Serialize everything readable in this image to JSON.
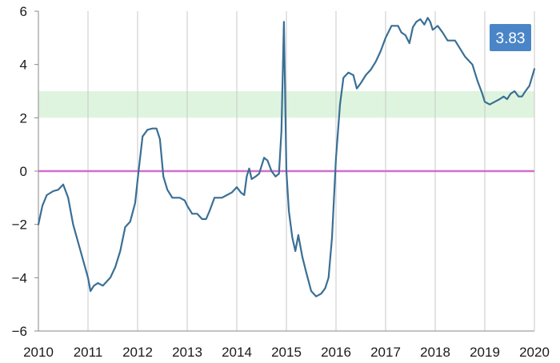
{
  "chart_data": {
    "type": "line",
    "title": "",
    "xlabel": "",
    "ylabel": "",
    "xlim": [
      2010,
      2020
    ],
    "ylim": [
      -6,
      6
    ],
    "x_ticks": [
      "2010",
      "2011",
      "2012",
      "2013",
      "2014",
      "2015",
      "2016",
      "2017",
      "2018",
      "2019",
      "2020"
    ],
    "y_ticks": [
      "6",
      "4",
      "2",
      "0",
      "−2",
      "−4",
      "−6"
    ],
    "grid": "vertical",
    "reference_band": {
      "from": 2,
      "to": 3,
      "color": "#d9f2d9"
    },
    "zero_line": {
      "y": 0,
      "color": "#d070c8"
    },
    "series": [
      {
        "color": "#3a6f95",
        "points": [
          [
            2010.0,
            -2.0
          ],
          [
            2010.08,
            -1.3
          ],
          [
            2010.17,
            -0.9
          ],
          [
            2010.3,
            -0.75
          ],
          [
            2010.4,
            -0.7
          ],
          [
            2010.5,
            -0.5
          ],
          [
            2010.6,
            -1.0
          ],
          [
            2010.7,
            -2.0
          ],
          [
            2010.85,
            -3.0
          ],
          [
            2011.0,
            -4.0
          ],
          [
            2011.05,
            -4.5
          ],
          [
            2011.12,
            -4.3
          ],
          [
            2011.2,
            -4.2
          ],
          [
            2011.3,
            -4.3
          ],
          [
            2011.45,
            -4.0
          ],
          [
            2011.55,
            -3.6
          ],
          [
            2011.65,
            -3.0
          ],
          [
            2011.75,
            -2.1
          ],
          [
            2011.85,
            -1.9
          ],
          [
            2011.95,
            -1.2
          ],
          [
            2012.02,
            0.0
          ],
          [
            2012.1,
            1.3
          ],
          [
            2012.2,
            1.55
          ],
          [
            2012.3,
            1.6
          ],
          [
            2012.38,
            1.6
          ],
          [
            2012.45,
            1.2
          ],
          [
            2012.52,
            -0.2
          ],
          [
            2012.6,
            -0.7
          ],
          [
            2012.7,
            -1.0
          ],
          [
            2012.85,
            -1.0
          ],
          [
            2012.95,
            -1.1
          ],
          [
            2013.0,
            -1.3
          ],
          [
            2013.1,
            -1.6
          ],
          [
            2013.2,
            -1.6
          ],
          [
            2013.3,
            -1.8
          ],
          [
            2013.38,
            -1.8
          ],
          [
            2013.45,
            -1.5
          ],
          [
            2013.55,
            -1.0
          ],
          [
            2013.7,
            -1.0
          ],
          [
            2013.8,
            -0.9
          ],
          [
            2013.9,
            -0.8
          ],
          [
            2014.0,
            -0.6
          ],
          [
            2014.08,
            -0.8
          ],
          [
            2014.15,
            -0.9
          ],
          [
            2014.2,
            -0.2
          ],
          [
            2014.25,
            0.1
          ],
          [
            2014.3,
            -0.3
          ],
          [
            2014.38,
            -0.2
          ],
          [
            2014.45,
            -0.1
          ],
          [
            2014.55,
            0.5
          ],
          [
            2014.62,
            0.4
          ],
          [
            2014.7,
            0.0
          ],
          [
            2014.78,
            -0.2
          ],
          [
            2014.85,
            -0.1
          ],
          [
            2014.9,
            1.5
          ],
          [
            2014.95,
            5.6
          ],
          [
            2015.0,
            0.0
          ],
          [
            2015.05,
            -1.5
          ],
          [
            2015.12,
            -2.5
          ],
          [
            2015.18,
            -3.0
          ],
          [
            2015.24,
            -2.4
          ],
          [
            2015.32,
            -3.2
          ],
          [
            2015.4,
            -3.8
          ],
          [
            2015.5,
            -4.5
          ],
          [
            2015.6,
            -4.7
          ],
          [
            2015.7,
            -4.6
          ],
          [
            2015.78,
            -4.4
          ],
          [
            2015.85,
            -4.0
          ],
          [
            2015.92,
            -2.5
          ],
          [
            2016.0,
            0.5
          ],
          [
            2016.08,
            2.5
          ],
          [
            2016.15,
            3.5
          ],
          [
            2016.25,
            3.7
          ],
          [
            2016.35,
            3.6
          ],
          [
            2016.42,
            3.1
          ],
          [
            2016.5,
            3.3
          ],
          [
            2016.6,
            3.6
          ],
          [
            2016.7,
            3.8
          ],
          [
            2016.8,
            4.1
          ],
          [
            2016.9,
            4.5
          ],
          [
            2017.0,
            5.0
          ],
          [
            2017.12,
            5.45
          ],
          [
            2017.25,
            5.45
          ],
          [
            2017.32,
            5.2
          ],
          [
            2017.4,
            5.1
          ],
          [
            2017.48,
            4.8
          ],
          [
            2017.55,
            5.4
          ],
          [
            2017.62,
            5.6
          ],
          [
            2017.7,
            5.7
          ],
          [
            2017.78,
            5.5
          ],
          [
            2017.85,
            5.75
          ],
          [
            2017.9,
            5.6
          ],
          [
            2017.95,
            5.3
          ],
          [
            2018.05,
            5.45
          ],
          [
            2018.15,
            5.2
          ],
          [
            2018.25,
            4.9
          ],
          [
            2018.4,
            4.9
          ],
          [
            2018.5,
            4.6
          ],
          [
            2018.6,
            4.3
          ],
          [
            2018.75,
            4.0
          ],
          [
            2018.85,
            3.4
          ],
          [
            2018.95,
            2.9
          ],
          [
            2019.0,
            2.6
          ],
          [
            2019.1,
            2.5
          ],
          [
            2019.2,
            2.6
          ],
          [
            2019.3,
            2.7
          ],
          [
            2019.38,
            2.8
          ],
          [
            2019.45,
            2.7
          ],
          [
            2019.52,
            2.9
          ],
          [
            2019.6,
            3.0
          ],
          [
            2019.68,
            2.8
          ],
          [
            2019.75,
            2.8
          ],
          [
            2019.82,
            3.0
          ],
          [
            2019.9,
            3.2
          ],
          [
            2020.0,
            3.83
          ]
        ]
      }
    ],
    "annotations": [
      {
        "text": "3.83",
        "anchor": "top-right",
        "color": "#4a86c7"
      }
    ]
  }
}
